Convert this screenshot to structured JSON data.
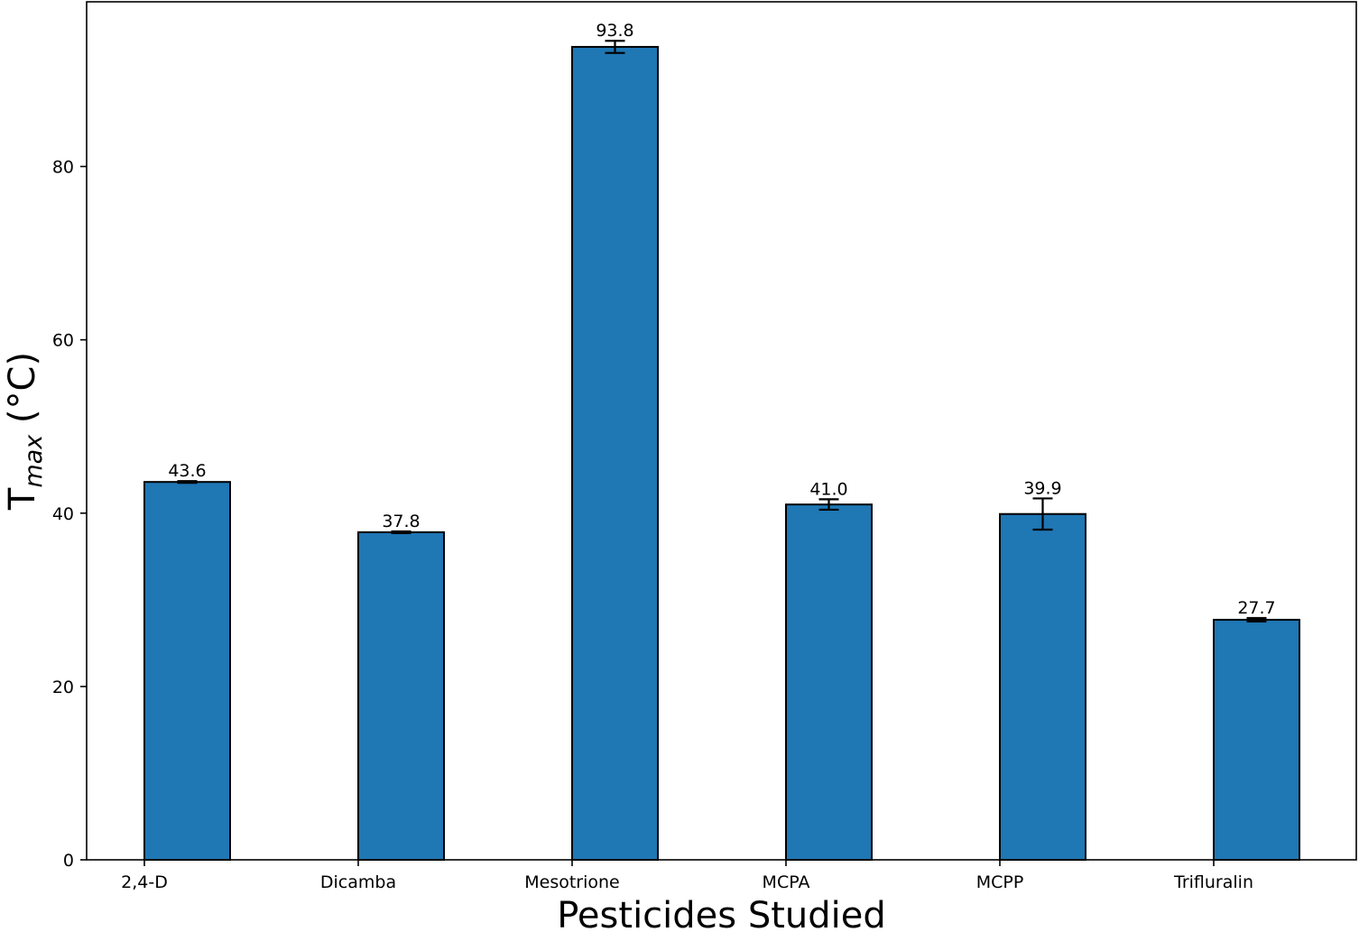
{
  "chart_data": {
    "type": "bar",
    "categories": [
      "2,4-D",
      "Dicamba",
      "Mesotrione",
      "MCPA",
      "MCPP",
      "Trifluralin"
    ],
    "values": [
      43.6,
      37.8,
      93.8,
      41.0,
      39.9,
      27.7
    ],
    "value_labels": [
      "43.6",
      "37.8",
      "93.8",
      "41.0",
      "39.9",
      "27.7"
    ],
    "error": [
      0.1,
      0.1,
      0.7,
      0.6,
      1.8,
      0.2
    ],
    "xlabel": "Pesticides Studied",
    "ylabel": {
      "main": "T",
      "subscript": "max",
      "unit": " (°C)"
    },
    "ylim": [
      0,
      99
    ],
    "yticks": [
      0,
      20,
      40,
      60,
      80
    ],
    "grid": false,
    "bar_color": "#1f77b4",
    "edge_color": "#000000"
  }
}
